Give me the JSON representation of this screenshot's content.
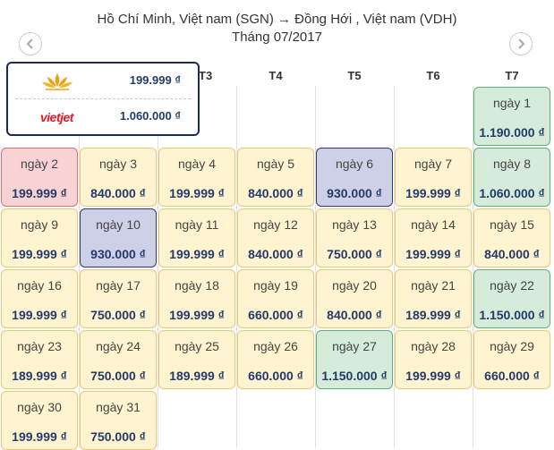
{
  "header": {
    "route": "Hồ Chí Minh, Việt nam (SGN) → Đồng Hới , Việt nam (VDH)",
    "month": "Tháng 07/2017"
  },
  "nav": {
    "prev_icon": "chevron-left-icon",
    "next_icon": "chevron-right-icon"
  },
  "weekdays": [
    "T3",
    "T4",
    "T5",
    "T6",
    "T7"
  ],
  "tooltip": {
    "airline1_logo": "vietnam-airlines-lotus-logo",
    "airline1_price": "199.999 ₫",
    "airline2_logo": "vietjet",
    "airline2_price": "1.060.000 ₫"
  },
  "colors": {
    "normal": "#fff4cf",
    "cheapest": "#d5ecdb",
    "selected": "#cdd0e7",
    "lowest": "#f9d3d3",
    "price_text": "#233a6a",
    "tooltip_border": "#1e2a55"
  },
  "days": [
    {
      "label": "ngày 1",
      "price": "1.190.000 ₫"
    },
    {
      "label": "ngày 2",
      "price": "199.999 ₫"
    },
    {
      "label": "ngày 3",
      "price": "840.000 ₫"
    },
    {
      "label": "ngày 4",
      "price": "199.999 ₫"
    },
    {
      "label": "ngày 5",
      "price": "840.000 ₫"
    },
    {
      "label": "ngày 6",
      "price": "930.000 ₫"
    },
    {
      "label": "ngày 7",
      "price": "199.999 ₫"
    },
    {
      "label": "ngày 8",
      "price": "1.060.000 ₫"
    },
    {
      "label": "ngày 9",
      "price": "199.999 ₫"
    },
    {
      "label": "ngày 10",
      "price": "930.000 ₫"
    },
    {
      "label": "ngày 11",
      "price": "199.999 ₫"
    },
    {
      "label": "ngày 12",
      "price": "840.000 ₫"
    },
    {
      "label": "ngày 13",
      "price": "750.000 ₫"
    },
    {
      "label": "ngày 14",
      "price": "199.999 ₫"
    },
    {
      "label": "ngày 15",
      "price": "840.000 ₫"
    },
    {
      "label": "ngày 16",
      "price": "199.999 ₫"
    },
    {
      "label": "ngày 17",
      "price": "750.000 ₫"
    },
    {
      "label": "ngày 18",
      "price": "199.999 ₫"
    },
    {
      "label": "ngày 19",
      "price": "660.000 ₫"
    },
    {
      "label": "ngày 20",
      "price": "840.000 ₫"
    },
    {
      "label": "ngày 21",
      "price": "189.999 ₫"
    },
    {
      "label": "ngày 22",
      "price": "1.150.000 ₫"
    },
    {
      "label": "ngày 23",
      "price": "189.999 ₫"
    },
    {
      "label": "ngày 24",
      "price": "750.000 ₫"
    },
    {
      "label": "ngày 25",
      "price": "189.999 ₫"
    },
    {
      "label": "ngày 26",
      "price": "660.000 ₫"
    },
    {
      "label": "ngày 27",
      "price": "1.150.000 ₫"
    },
    {
      "label": "ngày 28",
      "price": "199.999 ₫"
    },
    {
      "label": "ngày 29",
      "price": "660.000 ₫"
    },
    {
      "label": "ngày 30",
      "price": "199.999 ₫"
    },
    {
      "label": "ngày 31",
      "price": "750.000 ₫"
    }
  ]
}
